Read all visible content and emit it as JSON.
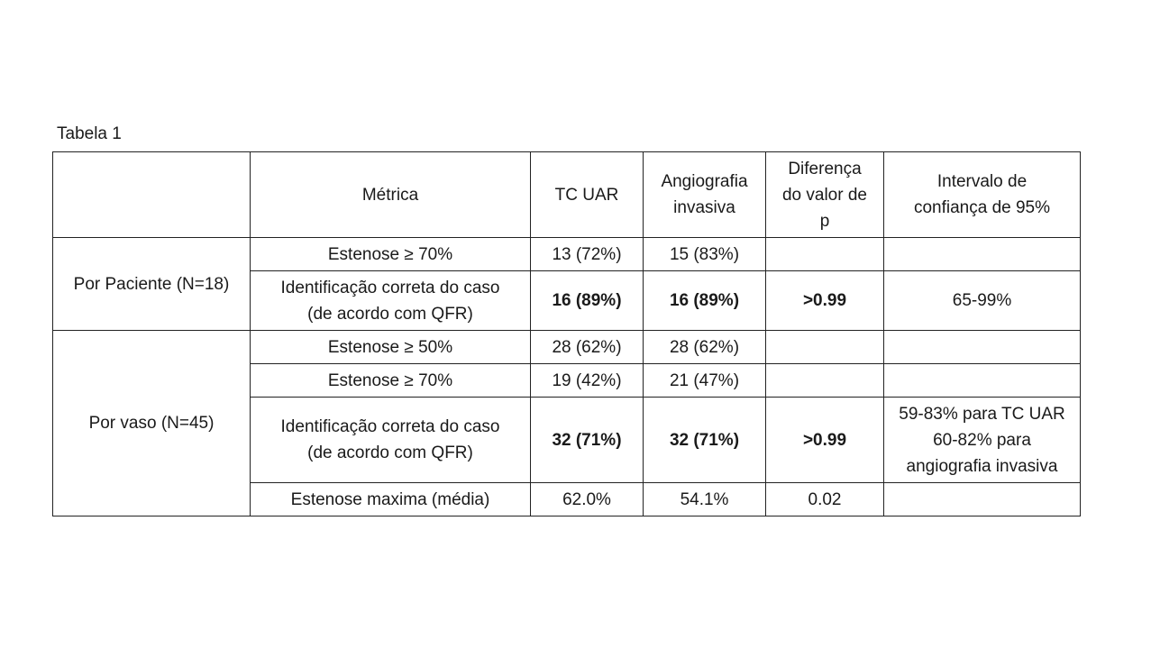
{
  "caption": "Tabela 1",
  "header": {
    "group": "",
    "metric": "Métrica",
    "tc_uar": "TC UAR",
    "angio": "Angiografia\ninvasiva",
    "pvalue": "Diferença\ndo valor de\np",
    "ci": "Intervalo de\nconfiança de 95%"
  },
  "groups": [
    {
      "label": "Por Paciente (N=18)",
      "rows": [
        {
          "metric": "Estenose ≥ 70%",
          "tc_uar": "13 (72%)",
          "angio": "15 (83%)",
          "pvalue": "",
          "ci": ""
        },
        {
          "metric": "Identificação correta do caso\n(de acordo com QFR)",
          "tc_uar": "16 (89%)",
          "angio": "16 (89%)",
          "pvalue": ">0.99",
          "ci": "65-99%"
        }
      ]
    },
    {
      "label": "Por vaso (N=45)",
      "rows": [
        {
          "metric": "Estenose ≥ 50%",
          "tc_uar": "28 (62%)",
          "angio": "28 (62%)",
          "pvalue": "",
          "ci": ""
        },
        {
          "metric": "Estenose ≥ 70%",
          "tc_uar": "19 (42%)",
          "angio": "21 (47%)",
          "pvalue": "",
          "ci": ""
        },
        {
          "metric": "Identificação correta do caso\n(de acordo com QFR)",
          "tc_uar": "32 (71%)",
          "angio": "32 (71%)",
          "pvalue": ">0.99",
          "ci": "59-83% para TC UAR\n60-82% para\nangiografia invasiva"
        },
        {
          "metric": "Estenose maxima (média)",
          "tc_uar": "62.0%",
          "angio": "54.1%",
          "pvalue": "0.02",
          "ci": ""
        }
      ]
    }
  ]
}
